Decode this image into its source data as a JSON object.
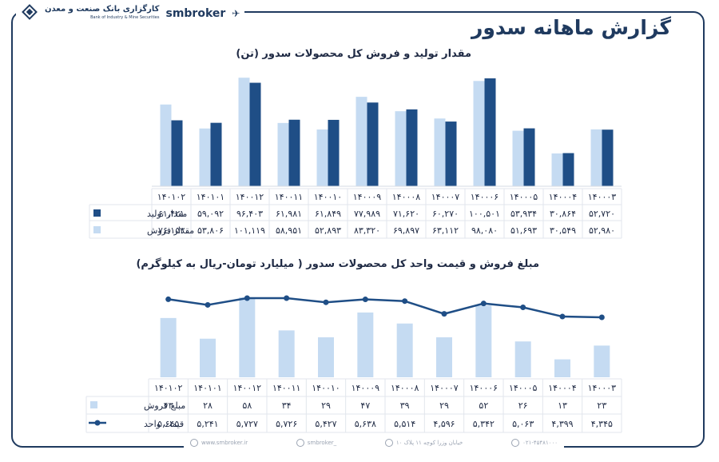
{
  "page": {
    "title": "گزارش ماهانه سدور"
  },
  "brand": {
    "bank_name": "کارگزاری بانک صنعت و معدن",
    "bank_en": "Bank of Industry & Mine Securities",
    "name": "smbroker"
  },
  "footer": {
    "website": "www.smbroker.ir",
    "instagram": "smbroker_",
    "address": "خیابان وزرا کوچه ۱۱ پلاک ۱۰",
    "phone": "۰۲۱-۴۵۴۸۱۰۰۰"
  },
  "colors": {
    "production": "#1f4e86",
    "sales": "#c5dbf2",
    "line": "#1f4e86"
  },
  "chart_data": [
    {
      "type": "bar",
      "title": "مقدار تولید و فروش کل محصولات سدور (تن)",
      "categories": [
        "۱۴۰۰۰۳",
        "۱۴۰۰۰۴",
        "۱۴۰۰۰۵",
        "۱۴۰۰۰۶",
        "۱۴۰۰۰۷",
        "۱۴۰۰۰۸",
        "۱۴۰۰۰۹",
        "۱۴۰۰۱۰",
        "۱۴۰۰۱۱",
        "۱۴۰۰۱۲",
        "۱۴۰۱۰۱",
        "۱۴۰۱۰۲"
      ],
      "series": [
        {
          "name": "مقدار تولید",
          "values": [
            52720,
            30864,
            53934,
            100501,
            60270,
            71620,
            77989,
            61849,
            61981,
            96403,
            59092,
            61421
          ],
          "labels": [
            "۵۲,۷۲۰",
            "۳۰,۸۶۴",
            "۵۳,۹۳۴",
            "۱۰۰,۵۰۱",
            "۶۰,۲۷۰",
            "۷۱,۶۲۰",
            "۷۷,۹۸۹",
            "۶۱,۸۴۹",
            "۶۱,۹۸۱",
            "۹۶,۴۰۳",
            "۵۹,۰۹۲",
            "۶۱,۴۲۱"
          ]
        },
        {
          "name": "مقدار فروش",
          "values": [
            52980,
            30549,
            51693,
            98080,
            63112,
            69897,
            83320,
            52893,
            58951,
            101119,
            53806,
            76153
          ],
          "labels": [
            "۵۲,۹۸۰",
            "۳۰,۵۴۹",
            "۵۱,۶۹۳",
            "۹۸,۰۸۰",
            "۶۳,۱۱۲",
            "۶۹,۸۹۷",
            "۸۳,۳۲۰",
            "۵۲,۸۹۳",
            "۵۸,۹۵۱",
            "۱۰۱,۱۱۹",
            "۵۳,۸۰۶",
            "۷۶,۱۵۳"
          ]
        }
      ],
      "ylim": [
        0,
        105000
      ]
    },
    {
      "type": "bar",
      "title": "مبلغ فروش و قیمت واحد کل محصولات سدور ( میلیارد تومان-ریال به کیلوگرم)",
      "categories": [
        "۱۴۰۰۰۳",
        "۱۴۰۰۰۴",
        "۱۴۰۰۰۵",
        "۱۴۰۰۰۶",
        "۱۴۰۰۰۷",
        "۱۴۰۰۰۸",
        "۱۴۰۰۰۹",
        "۱۴۰۰۱۰",
        "۱۴۰۰۱۱",
        "۱۴۰۰۱۲",
        "۱۴۰۱۰۱",
        "۱۴۰۱۰۲"
      ],
      "series": [
        {
          "name": "مبلغ فروش",
          "type": "bar",
          "values": [
            23,
            13,
            26,
            52,
            29,
            39,
            47,
            29,
            34,
            58,
            28,
            43
          ],
          "labels": [
            "۲۳",
            "۱۳",
            "۲۶",
            "۵۲",
            "۲۹",
            "۳۹",
            "۴۷",
            "۲۹",
            "۳۴",
            "۵۸",
            "۲۸",
            "۴۳"
          ]
        },
        {
          "name": "قیمت واحد",
          "type": "line",
          "values": [
            4345,
            4399,
            5063,
            5342,
            4596,
            5514,
            5638,
            5427,
            5726,
            5727,
            5241,
            5645
          ],
          "labels": [
            "۴,۳۴۵",
            "۴,۳۹۹",
            "۵,۰۶۳",
            "۵,۳۴۲",
            "۴,۵۹۶",
            "۵,۵۱۴",
            "۵,۶۳۸",
            "۵,۴۲۷",
            "۵,۷۲۶",
            "۵,۷۲۷",
            "۵,۲۴۱",
            "۵,۶۴۵"
          ]
        }
      ],
      "ylim": [
        0,
        58
      ],
      "line_ylim": [
        0,
        5727
      ]
    }
  ]
}
